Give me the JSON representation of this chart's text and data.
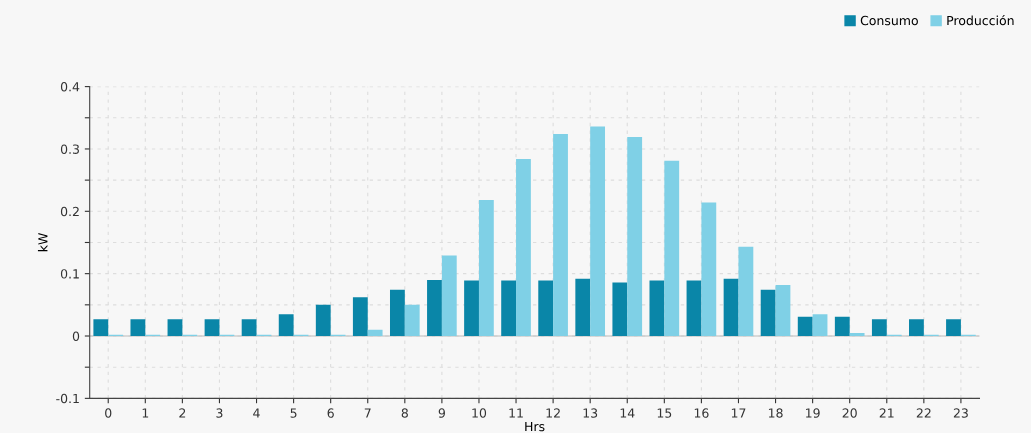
{
  "chart_data": {
    "type": "bar",
    "xlabel": "Hrs",
    "ylabel": "kW",
    "categories": [
      "0",
      "1",
      "2",
      "3",
      "4",
      "5",
      "6",
      "7",
      "8",
      "9",
      "10",
      "11",
      "12",
      "13",
      "14",
      "15",
      "16",
      "17",
      "18",
      "19",
      "20",
      "21",
      "22",
      "23"
    ],
    "series": [
      {
        "name": "Consumo",
        "color": "#0a86a8",
        "values": [
          0.027,
          0.027,
          0.027,
          0.027,
          0.027,
          0.035,
          0.05,
          0.062,
          0.074,
          0.09,
          0.089,
          0.089,
          0.089,
          0.092,
          0.086,
          0.089,
          0.089,
          0.092,
          0.074,
          0.031,
          0.031,
          0.027,
          0.027,
          0.027
        ]
      },
      {
        "name": "Producción",
        "color": "#7fd0e6",
        "values": [
          0.002,
          0.002,
          0.002,
          0.002,
          0.002,
          0.002,
          0.002,
          0.01,
          0.05,
          0.129,
          0.218,
          0.284,
          0.324,
          0.336,
          0.319,
          0.281,
          0.214,
          0.143,
          0.082,
          0.035,
          0.005,
          0.002,
          0.002,
          0.002
        ]
      }
    ],
    "ylim": [
      -0.1,
      0.4
    ],
    "yticks": [
      -0.1,
      {
        "value": -0.05,
        "label": null
      },
      0,
      {
        "value": 0.05,
        "label": null
      },
      0.1,
      {
        "value": 0.15,
        "label": null
      },
      0.2,
      {
        "value": 0.25,
        "label": null
      },
      0.3,
      {
        "value": 0.35,
        "label": null
      },
      0.4
    ],
    "grid": true,
    "legend": "top right"
  }
}
